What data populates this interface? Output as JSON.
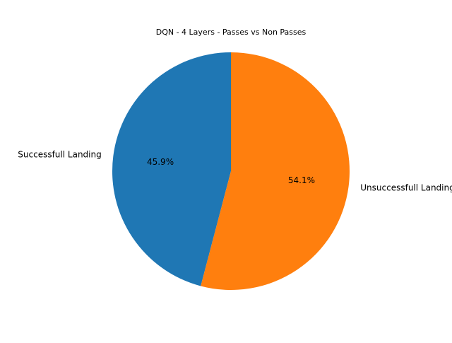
{
  "chart_data": {
    "type": "pie",
    "title": "DQN - 4 Layers - Passes vs Non Passes",
    "categories": [
      "Successfull Landing",
      "Unsuccessfull Landing"
    ],
    "values": [
      45.9,
      54.1
    ],
    "percent_labels": [
      "45.9%",
      "54.1%"
    ],
    "colors": [
      "#1f77b4",
      "#ff7f0e"
    ],
    "start_angle_deg": 90,
    "direction": "counterclockwise"
  }
}
